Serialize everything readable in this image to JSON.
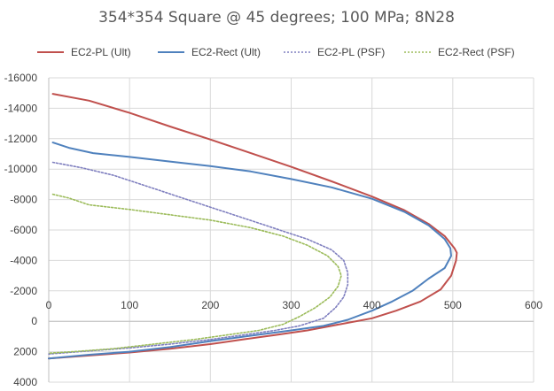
{
  "chart_data": {
    "type": "line",
    "title": "354*354 Square @ 45 degrees; 100 MPa; 8N28",
    "xlabel": "",
    "ylabel": "",
    "xlim": [
      0,
      600
    ],
    "ylim": [
      -16000,
      4000
    ],
    "y_reversed": true,
    "x_ticks": [
      0,
      100,
      200,
      300,
      400,
      500,
      600
    ],
    "x_tick_labels": [
      "0",
      "100",
      "200",
      "300",
      "400",
      "500",
      "600"
    ],
    "y_ticks": [
      -16000,
      -14000,
      -12000,
      -10000,
      -8000,
      -6000,
      -4000,
      -2000,
      0,
      2000,
      4000
    ],
    "y_tick_labels": [
      "-16000",
      "-14000",
      "-12000",
      "-10000",
      "-8000",
      "-6000",
      "-4000",
      "-2000",
      "0",
      "2000",
      "4000"
    ],
    "grid": true,
    "legend_position": "top",
    "series": [
      {
        "name": "EC2-PL (Ult)",
        "color": "#c0504d",
        "dash": "solid",
        "points": [
          [
            5,
            -14950
          ],
          [
            50,
            -14500
          ],
          [
            100,
            -13700
          ],
          [
            150,
            -12800
          ],
          [
            200,
            -11950
          ],
          [
            250,
            -11050
          ],
          [
            300,
            -10150
          ],
          [
            350,
            -9200
          ],
          [
            400,
            -8200
          ],
          [
            440,
            -7300
          ],
          [
            470,
            -6400
          ],
          [
            490,
            -5600
          ],
          [
            502,
            -4800
          ],
          [
            505,
            -4500
          ],
          [
            504,
            -4000
          ],
          [
            498,
            -3000
          ],
          [
            485,
            -2100
          ],
          [
            460,
            -1300
          ],
          [
            430,
            -700
          ],
          [
            400,
            -200
          ],
          [
            360,
            200
          ],
          [
            320,
            600
          ],
          [
            280,
            900
          ],
          [
            240,
            1200
          ],
          [
            200,
            1500
          ],
          [
            150,
            1800
          ],
          [
            100,
            2050
          ],
          [
            50,
            2250
          ],
          [
            0,
            2450
          ]
        ]
      },
      {
        "name": "EC2-Rect (Ult)",
        "color": "#4f81bd",
        "dash": "solid",
        "points": [
          [
            5,
            -11750
          ],
          [
            25,
            -11400
          ],
          [
            55,
            -11050
          ],
          [
            100,
            -10800
          ],
          [
            150,
            -10500
          ],
          [
            200,
            -10200
          ],
          [
            250,
            -9850
          ],
          [
            300,
            -9350
          ],
          [
            350,
            -8800
          ],
          [
            400,
            -8050
          ],
          [
            440,
            -7200
          ],
          [
            470,
            -6300
          ],
          [
            490,
            -5400
          ],
          [
            497,
            -4800
          ],
          [
            498,
            -4300
          ],
          [
            490,
            -3500
          ],
          [
            470,
            -2800
          ],
          [
            450,
            -2000
          ],
          [
            425,
            -1300
          ],
          [
            400,
            -700
          ],
          [
            370,
            -100
          ],
          [
            340,
            300
          ],
          [
            300,
            600
          ],
          [
            250,
            950
          ],
          [
            200,
            1300
          ],
          [
            150,
            1700
          ],
          [
            100,
            2000
          ],
          [
            50,
            2200
          ],
          [
            0,
            2450
          ]
        ]
      },
      {
        "name": "EC2-PL (PSF)",
        "color": "#7f7fbf",
        "dash": "dotted",
        "points": [
          [
            5,
            -10450
          ],
          [
            40,
            -10100
          ],
          [
            80,
            -9600
          ],
          [
            120,
            -8900
          ],
          [
            160,
            -8200
          ],
          [
            200,
            -7500
          ],
          [
            240,
            -6800
          ],
          [
            280,
            -6100
          ],
          [
            320,
            -5400
          ],
          [
            350,
            -4700
          ],
          [
            365,
            -4000
          ],
          [
            370,
            -3200
          ],
          [
            370,
            -2400
          ],
          [
            365,
            -1600
          ],
          [
            355,
            -900
          ],
          [
            340,
            -200
          ],
          [
            310,
            300
          ],
          [
            280,
            600
          ],
          [
            240,
            900
          ],
          [
            200,
            1200
          ],
          [
            150,
            1500
          ],
          [
            100,
            1750
          ],
          [
            50,
            1950
          ],
          [
            0,
            2150
          ]
        ]
      },
      {
        "name": "EC2-Rect (PSF)",
        "color": "#9bbb59",
        "dash": "dotted",
        "points": [
          [
            5,
            -8350
          ],
          [
            25,
            -8100
          ],
          [
            50,
            -7650
          ],
          [
            100,
            -7350
          ],
          [
            150,
            -7000
          ],
          [
            200,
            -6650
          ],
          [
            250,
            -6150
          ],
          [
            290,
            -5600
          ],
          [
            320,
            -5000
          ],
          [
            345,
            -4300
          ],
          [
            358,
            -3600
          ],
          [
            362,
            -3000
          ],
          [
            358,
            -2300
          ],
          [
            348,
            -1600
          ],
          [
            330,
            -900
          ],
          [
            310,
            -300
          ],
          [
            290,
            200
          ],
          [
            260,
            600
          ],
          [
            220,
            900
          ],
          [
            180,
            1200
          ],
          [
            130,
            1500
          ],
          [
            80,
            1800
          ],
          [
            30,
            2000
          ],
          [
            0,
            2100
          ]
        ]
      }
    ]
  }
}
